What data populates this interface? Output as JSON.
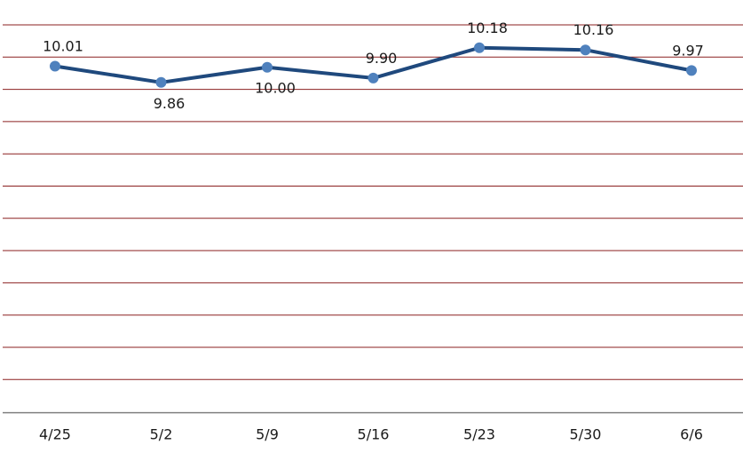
{
  "chart_data": {
    "type": "line",
    "categories": [
      "4/25",
      "5/2",
      "5/9",
      "5/16",
      "5/23",
      "5/30",
      "6/6"
    ],
    "series": [
      {
        "values": [
          10.01,
          9.86,
          10.0,
          9.9,
          10.18,
          10.16,
          9.97
        ],
        "data_labels": [
          "10.01",
          "9.86",
          "10.00",
          "9.90",
          "10.18",
          "10.16",
          "9.97"
        ],
        "color": "#1f497d",
        "marker_color": "#4f81bd"
      }
    ],
    "grid": true,
    "grid_color": "#8b2020",
    "axis_color": "#808080",
    "legend": "none"
  }
}
